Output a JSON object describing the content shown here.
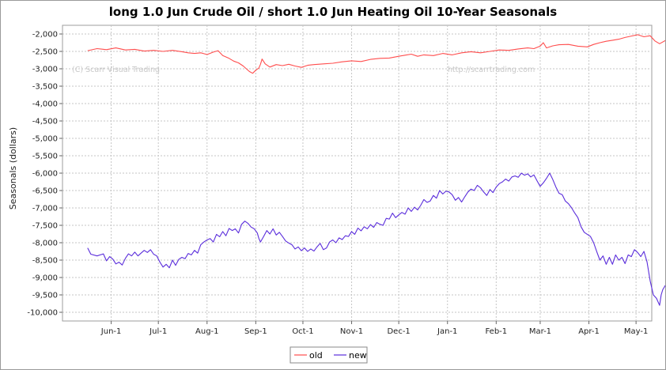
{
  "chart_data": {
    "type": "line",
    "title": "long 1.0 Jun Crude Oil  / short 1.0 Jun Heating Oil 10-Year Seasonals",
    "xlabel": "",
    "ylabel": "Seasonals (dollars)",
    "ylim": [
      -10250,
      -1750
    ],
    "yticks": [
      -2000,
      -2500,
      -3000,
      -3500,
      -4000,
      -4500,
      -5000,
      -5500,
      -6000,
      -6500,
      -7000,
      -7500,
      -8000,
      -8500,
      -9000,
      -9500,
      -10000
    ],
    "ytick_labels": [
      "-2,000",
      "-2,500",
      "-3,000",
      "-3,500",
      "-4,000",
      "-4,500",
      "-5,000",
      "-5,500",
      "-6,000",
      "-6,500",
      "-7,000",
      "-7,500",
      "-8,000",
      "-8,500",
      "-9,000",
      "-9,500",
      "-10,000"
    ],
    "x_range_days": [
      0,
      375
    ],
    "xticks": [
      {
        "label": "Jun-1",
        "day": 31
      },
      {
        "label": "Jul-1",
        "day": 61
      },
      {
        "label": "Aug-1",
        "day": 92
      },
      {
        "label": "Sep-1",
        "day": 123
      },
      {
        "label": "Oct-1",
        "day": 153
      },
      {
        "label": "Nov-1",
        "day": 184
      },
      {
        "label": "Dec-1",
        "day": 214
      },
      {
        "label": "Jan-1",
        "day": 245
      },
      {
        "label": "Feb-1",
        "day": 276
      },
      {
        "label": "Mar-1",
        "day": 304
      },
      {
        "label": "Apr-1",
        "day": 335
      },
      {
        "label": "May-1",
        "day": 365
      },
      {
        "label": "Jun-1",
        "day": 396
      }
    ],
    "grid": true,
    "legend_position": "bottom-center",
    "watermarks": [
      "(C) Scarr Visual Trading",
      "http://scarrtrading.com"
    ],
    "series": [
      {
        "name": "old",
        "color": "#ff4d4d",
        "points": [
          [
            16,
            -2480
          ],
          [
            22,
            -2420
          ],
          [
            28,
            -2450
          ],
          [
            34,
            -2400
          ],
          [
            40,
            -2460
          ],
          [
            46,
            -2440
          ],
          [
            52,
            -2490
          ],
          [
            58,
            -2470
          ],
          [
            64,
            -2500
          ],
          [
            70,
            -2470
          ],
          [
            76,
            -2510
          ],
          [
            80,
            -2540
          ],
          [
            84,
            -2560
          ],
          [
            88,
            -2540
          ],
          [
            92,
            -2590
          ],
          [
            96,
            -2520
          ],
          [
            99,
            -2480
          ],
          [
            102,
            -2620
          ],
          [
            106,
            -2700
          ],
          [
            109,
            -2780
          ],
          [
            112,
            -2830
          ],
          [
            115,
            -2920
          ],
          [
            117,
            -3000
          ],
          [
            119,
            -3080
          ],
          [
            121,
            -3130
          ],
          [
            123,
            -3040
          ],
          [
            125,
            -2980
          ],
          [
            126,
            -2870
          ],
          [
            127,
            -2720
          ],
          [
            129,
            -2860
          ],
          [
            132,
            -2950
          ],
          [
            136,
            -2880
          ],
          [
            140,
            -2910
          ],
          [
            144,
            -2870
          ],
          [
            148,
            -2920
          ],
          [
            152,
            -2960
          ],
          [
            156,
            -2900
          ],
          [
            160,
            -2880
          ],
          [
            166,
            -2860
          ],
          [
            172,
            -2840
          ],
          [
            178,
            -2800
          ],
          [
            184,
            -2770
          ],
          [
            190,
            -2790
          ],
          [
            196,
            -2730
          ],
          [
            202,
            -2700
          ],
          [
            208,
            -2690
          ],
          [
            214,
            -2640
          ],
          [
            218,
            -2610
          ],
          [
            222,
            -2580
          ],
          [
            226,
            -2640
          ],
          [
            230,
            -2600
          ],
          [
            236,
            -2620
          ],
          [
            242,
            -2560
          ],
          [
            248,
            -2600
          ],
          [
            254,
            -2540
          ],
          [
            260,
            -2510
          ],
          [
            266,
            -2540
          ],
          [
            272,
            -2500
          ],
          [
            278,
            -2460
          ],
          [
            284,
            -2470
          ],
          [
            290,
            -2430
          ],
          [
            296,
            -2400
          ],
          [
            300,
            -2420
          ],
          [
            304,
            -2350
          ],
          [
            306,
            -2250
          ],
          [
            308,
            -2400
          ],
          [
            312,
            -2340
          ],
          [
            316,
            -2310
          ],
          [
            322,
            -2300
          ],
          [
            328,
            -2350
          ],
          [
            334,
            -2370
          ],
          [
            338,
            -2300
          ],
          [
            342,
            -2250
          ],
          [
            346,
            -2210
          ],
          [
            350,
            -2180
          ],
          [
            354,
            -2150
          ],
          [
            358,
            -2100
          ],
          [
            362,
            -2060
          ],
          [
            366,
            -2020
          ],
          [
            370,
            -2080
          ],
          [
            374,
            -2050
          ],
          [
            377,
            -2200
          ],
          [
            380,
            -2280
          ],
          [
            384,
            -2180
          ],
          [
            388,
            -2240
          ]
        ]
      },
      {
        "name": "new",
        "color": "#5a2ddb",
        "points": [
          [
            16,
            -8150
          ],
          [
            18,
            -8330
          ],
          [
            22,
            -8380
          ],
          [
            26,
            -8320
          ],
          [
            28,
            -8520
          ],
          [
            30,
            -8400
          ],
          [
            32,
            -8470
          ],
          [
            34,
            -8610
          ],
          [
            36,
            -8560
          ],
          [
            38,
            -8640
          ],
          [
            40,
            -8450
          ],
          [
            42,
            -8320
          ],
          [
            44,
            -8380
          ],
          [
            46,
            -8270
          ],
          [
            48,
            -8380
          ],
          [
            50,
            -8300
          ],
          [
            52,
            -8220
          ],
          [
            54,
            -8280
          ],
          [
            56,
            -8200
          ],
          [
            58,
            -8330
          ],
          [
            60,
            -8380
          ],
          [
            62,
            -8560
          ],
          [
            64,
            -8700
          ],
          [
            66,
            -8620
          ],
          [
            68,
            -8720
          ],
          [
            70,
            -8500
          ],
          [
            72,
            -8650
          ],
          [
            74,
            -8480
          ],
          [
            76,
            -8420
          ],
          [
            78,
            -8460
          ],
          [
            80,
            -8310
          ],
          [
            82,
            -8350
          ],
          [
            84,
            -8220
          ],
          [
            86,
            -8300
          ],
          [
            88,
            -8060
          ],
          [
            90,
            -7980
          ],
          [
            92,
            -7920
          ],
          [
            94,
            -7880
          ],
          [
            96,
            -7980
          ],
          [
            98,
            -7760
          ],
          [
            100,
            -7830
          ],
          [
            102,
            -7680
          ],
          [
            104,
            -7800
          ],
          [
            106,
            -7590
          ],
          [
            108,
            -7650
          ],
          [
            110,
            -7600
          ],
          [
            112,
            -7720
          ],
          [
            114,
            -7470
          ],
          [
            116,
            -7380
          ],
          [
            118,
            -7440
          ],
          [
            120,
            -7550
          ],
          [
            122,
            -7600
          ],
          [
            124,
            -7720
          ],
          [
            125,
            -7880
          ],
          [
            126,
            -7980
          ],
          [
            128,
            -7820
          ],
          [
            130,
            -7650
          ],
          [
            132,
            -7750
          ],
          [
            134,
            -7600
          ],
          [
            136,
            -7780
          ],
          [
            138,
            -7700
          ],
          [
            140,
            -7820
          ],
          [
            142,
            -7950
          ],
          [
            144,
            -8010
          ],
          [
            146,
            -8060
          ],
          [
            148,
            -8180
          ],
          [
            150,
            -8120
          ],
          [
            152,
            -8230
          ],
          [
            154,
            -8150
          ],
          [
            156,
            -8250
          ],
          [
            158,
            -8180
          ],
          [
            160,
            -8240
          ],
          [
            162,
            -8120
          ],
          [
            164,
            -8020
          ],
          [
            166,
            -8200
          ],
          [
            168,
            -8150
          ],
          [
            170,
            -7980
          ],
          [
            172,
            -7920
          ],
          [
            174,
            -8000
          ],
          [
            176,
            -7860
          ],
          [
            178,
            -7910
          ],
          [
            180,
            -7800
          ],
          [
            182,
            -7820
          ],
          [
            184,
            -7680
          ],
          [
            186,
            -7760
          ],
          [
            188,
            -7580
          ],
          [
            190,
            -7660
          ],
          [
            192,
            -7540
          ],
          [
            194,
            -7600
          ],
          [
            196,
            -7480
          ],
          [
            198,
            -7560
          ],
          [
            200,
            -7420
          ],
          [
            202,
            -7470
          ],
          [
            204,
            -7500
          ],
          [
            206,
            -7300
          ],
          [
            208,
            -7320
          ],
          [
            210,
            -7150
          ],
          [
            212,
            -7280
          ],
          [
            214,
            -7200
          ],
          [
            216,
            -7130
          ],
          [
            218,
            -7180
          ],
          [
            220,
            -7000
          ],
          [
            222,
            -7100
          ],
          [
            224,
            -6980
          ],
          [
            226,
            -7060
          ],
          [
            228,
            -6920
          ],
          [
            230,
            -6760
          ],
          [
            232,
            -6840
          ],
          [
            234,
            -6800
          ],
          [
            236,
            -6640
          ],
          [
            238,
            -6720
          ],
          [
            240,
            -6500
          ],
          [
            242,
            -6600
          ],
          [
            244,
            -6520
          ],
          [
            246,
            -6540
          ],
          [
            248,
            -6620
          ],
          [
            250,
            -6780
          ],
          [
            252,
            -6700
          ],
          [
            254,
            -6830
          ],
          [
            256,
            -6680
          ],
          [
            258,
            -6540
          ],
          [
            260,
            -6460
          ],
          [
            262,
            -6500
          ],
          [
            264,
            -6350
          ],
          [
            266,
            -6420
          ],
          [
            268,
            -6540
          ],
          [
            270,
            -6640
          ],
          [
            272,
            -6470
          ],
          [
            274,
            -6560
          ],
          [
            276,
            -6400
          ],
          [
            278,
            -6300
          ],
          [
            280,
            -6250
          ],
          [
            282,
            -6170
          ],
          [
            284,
            -6230
          ],
          [
            286,
            -6110
          ],
          [
            288,
            -6080
          ],
          [
            290,
            -6120
          ],
          [
            292,
            -6000
          ],
          [
            294,
            -6060
          ],
          [
            296,
            -6020
          ],
          [
            298,
            -6110
          ],
          [
            300,
            -6050
          ],
          [
            302,
            -6220
          ],
          [
            304,
            -6380
          ],
          [
            306,
            -6280
          ],
          [
            308,
            -6150
          ],
          [
            310,
            -6000
          ],
          [
            312,
            -6180
          ],
          [
            314,
            -6400
          ],
          [
            316,
            -6580
          ],
          [
            318,
            -6620
          ],
          [
            320,
            -6800
          ],
          [
            322,
            -6880
          ],
          [
            324,
            -7000
          ],
          [
            326,
            -7150
          ],
          [
            328,
            -7280
          ],
          [
            330,
            -7540
          ],
          [
            332,
            -7700
          ],
          [
            334,
            -7760
          ],
          [
            336,
            -7820
          ],
          [
            338,
            -8000
          ],
          [
            340,
            -8260
          ],
          [
            342,
            -8500
          ],
          [
            344,
            -8380
          ],
          [
            346,
            -8620
          ],
          [
            348,
            -8420
          ],
          [
            350,
            -8620
          ],
          [
            352,
            -8350
          ],
          [
            354,
            -8500
          ],
          [
            356,
            -8420
          ],
          [
            358,
            -8600
          ],
          [
            360,
            -8350
          ],
          [
            362,
            -8400
          ],
          [
            364,
            -8200
          ],
          [
            366,
            -8280
          ],
          [
            368,
            -8400
          ],
          [
            370,
            -8250
          ],
          [
            372,
            -8550
          ],
          [
            374,
            -9100
          ],
          [
            376,
            -9500
          ],
          [
            378,
            -9600
          ],
          [
            380,
            -9800
          ],
          [
            381,
            -9500
          ],
          [
            382,
            -9350
          ],
          [
            384,
            -9200
          ],
          [
            386,
            -9300
          ],
          [
            388,
            -9200
          ]
        ]
      }
    ]
  }
}
